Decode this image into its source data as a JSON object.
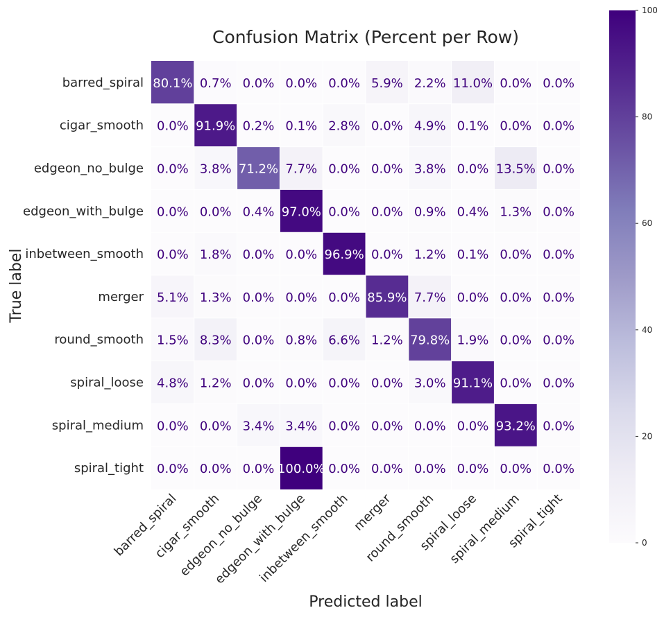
{
  "chart_data": {
    "type": "heatmap",
    "title": "Confusion Matrix (Percent per Row)",
    "xlabel": "Predicted label",
    "ylabel": "True label",
    "row_labels": [
      "barred_spiral",
      "cigar_smooth",
      "edgeon_no_bulge",
      "edgeon_with_bulge",
      "inbetween_smooth",
      "merger",
      "round_smooth",
      "spiral_loose",
      "spiral_medium",
      "spiral_tight"
    ],
    "col_labels": [
      "barred_spiral",
      "cigar_smooth",
      "edgeon_no_bulge",
      "edgeon_with_bulge",
      "inbetween_smooth",
      "merger",
      "round_smooth",
      "spiral_loose",
      "spiral_medium",
      "spiral_tight"
    ],
    "values": [
      [
        80.1,
        0.7,
        0.0,
        0.0,
        0.0,
        5.9,
        2.2,
        11.0,
        0.0,
        0.0
      ],
      [
        0.0,
        91.9,
        0.2,
        0.1,
        2.8,
        0.0,
        4.9,
        0.1,
        0.0,
        0.0
      ],
      [
        0.0,
        3.8,
        71.2,
        7.7,
        0.0,
        0.0,
        3.8,
        0.0,
        13.5,
        0.0
      ],
      [
        0.0,
        0.0,
        0.4,
        97.0,
        0.0,
        0.0,
        0.9,
        0.4,
        1.3,
        0.0
      ],
      [
        0.0,
        1.8,
        0.0,
        0.0,
        96.9,
        0.0,
        1.2,
        0.1,
        0.0,
        0.0
      ],
      [
        5.1,
        1.3,
        0.0,
        0.0,
        0.0,
        85.9,
        7.7,
        0.0,
        0.0,
        0.0
      ],
      [
        1.5,
        8.3,
        0.0,
        0.8,
        6.6,
        1.2,
        79.8,
        1.9,
        0.0,
        0.0
      ],
      [
        4.8,
        1.2,
        0.0,
        0.0,
        0.0,
        0.0,
        3.0,
        91.1,
        0.0,
        0.0
      ],
      [
        0.0,
        0.0,
        3.4,
        3.4,
        0.0,
        0.0,
        0.0,
        0.0,
        93.2,
        0.0
      ],
      [
        0.0,
        0.0,
        0.0,
        100.0,
        0.0,
        0.0,
        0.0,
        0.0,
        0.0,
        0.0
      ]
    ],
    "value_suffix": "%",
    "colorbar": {
      "range": [
        0,
        100
      ],
      "ticks": [
        0,
        20,
        40,
        60,
        80,
        100
      ]
    },
    "colormap": "Purples",
    "colors": {
      "low": "#fcfbfd",
      "high": "#3f007d",
      "text_dark": "#3f007d",
      "text_light": "#ffffff"
    }
  }
}
